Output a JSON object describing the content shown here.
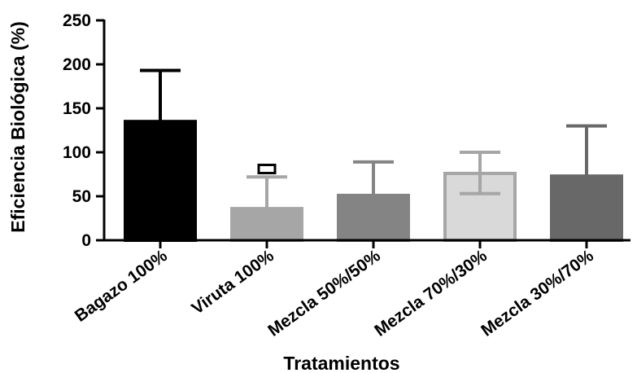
{
  "chart_data": {
    "type": "bar",
    "title": "",
    "xlabel": "Tratamientos",
    "ylabel": "Eficiencia Biológica (%)",
    "ylim": [
      0,
      250
    ],
    "yticks": [
      0,
      50,
      100,
      150,
      200,
      250
    ],
    "ytick_labels": [
      "0",
      "50",
      "100",
      "150",
      "200",
      "250"
    ],
    "categories": [
      "Bagazo 100%",
      "Viruta 100%",
      "Mezcla 50%/50%",
      "Mezcla 70%/30%",
      "Mezcla 30%/70%"
    ],
    "values": [
      135,
      36,
      51,
      76,
      73
    ],
    "error_upper": [
      193,
      72,
      89,
      100,
      130
    ],
    "error_lower": [
      null,
      null,
      null,
      53,
      null
    ],
    "colors": [
      "#000000",
      "#a6a6a6",
      "#848484",
      "#d9d9d9",
      "#686868"
    ],
    "bar_outline_colors": [
      "#000000",
      "#a6a6a6",
      "#848484",
      "#a6a6a6",
      "#686868"
    ],
    "error_bar_colors": [
      "#000000",
      "#a6a6a6",
      "#848484",
      "#a6a6a6",
      "#686868"
    ],
    "annotations": [
      {
        "category": "Viruta 100%",
        "marker": "open-square",
        "value": 81
      }
    ],
    "grid": false,
    "legend": "none"
  }
}
